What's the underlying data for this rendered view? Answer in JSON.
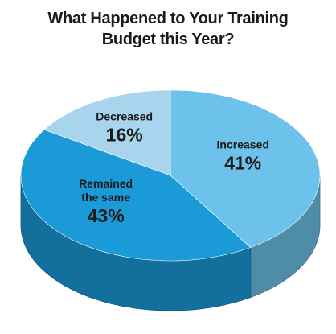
{
  "chart_data": {
    "type": "pie",
    "title": "What Happened to Your Training Budget this Year?",
    "categories": [
      "Increased",
      "Remained the same",
      "Decreased"
    ],
    "values": [
      41,
      43,
      16
    ],
    "value_labels": [
      "41%",
      "43%",
      "16%"
    ],
    "colors": [
      "#6cc2ea",
      "#1b9ad8",
      "#a8d4ee"
    ]
  }
}
